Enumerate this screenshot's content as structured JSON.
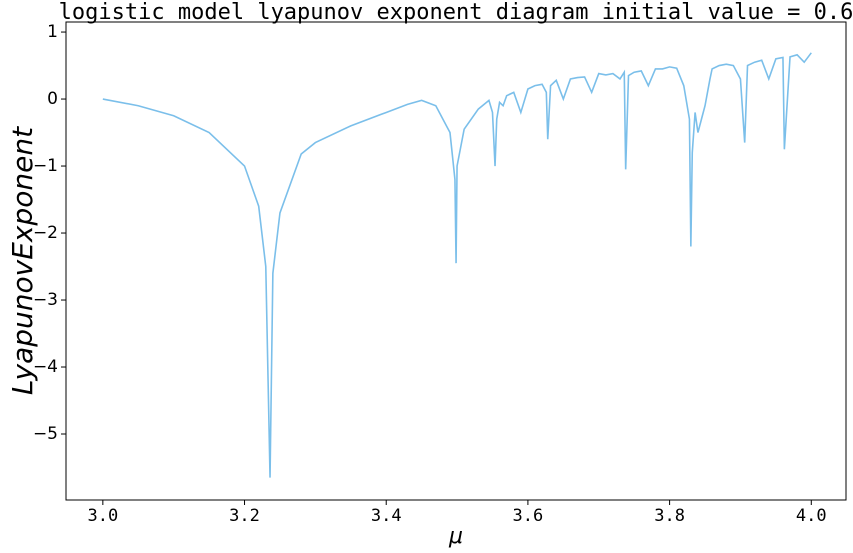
{
  "chart_data": {
    "type": "line",
    "title": "logistic model lyapunov exponent diagram initial value = 0.6",
    "xlabel": "μ",
    "ylabel": "LyapunovExponent",
    "xlim": [
      2.948,
      4.049
    ],
    "ylim": [
      -5.985,
      1.15
    ],
    "xticks": [
      {
        "value": 3,
        "label": "3.0"
      },
      3.2,
      3.4,
      3.6,
      3.8,
      {
        "value": 4,
        "label": "4.0"
      }
    ],
    "yticks": [
      1,
      0,
      {
        "value": -1,
        "label": "−1"
      },
      {
        "value": -2,
        "label": "−2"
      },
      {
        "value": -3,
        "label": "−3"
      },
      {
        "value": -4,
        "label": "−4"
      },
      {
        "value": -5,
        "label": "−5"
      }
    ],
    "grid": false,
    "x": [
      3.0,
      3.05,
      3.1,
      3.15,
      3.2,
      3.22,
      3.23,
      3.236,
      3.24,
      3.25,
      3.28,
      3.3,
      3.35,
      3.4,
      3.43,
      3.45,
      3.47,
      3.49,
      3.497,
      3.4986,
      3.5,
      3.51,
      3.53,
      3.545,
      3.55,
      3.5536,
      3.556,
      3.56,
      3.565,
      3.57,
      3.58,
      3.59,
      3.6,
      3.61,
      3.62,
      3.626,
      3.628,
      3.632,
      3.64,
      3.65,
      3.66,
      3.67,
      3.68,
      3.69,
      3.7,
      3.71,
      3.72,
      3.73,
      3.736,
      3.738,
      3.742,
      3.75,
      3.76,
      3.77,
      3.78,
      3.79,
      3.8,
      3.81,
      3.82,
      3.828,
      3.83,
      3.832,
      3.836,
      3.84,
      3.845,
      3.85,
      3.857,
      3.86,
      3.87,
      3.88,
      3.89,
      3.9,
      3.906,
      3.91,
      3.92,
      3.93,
      3.94,
      3.95,
      3.96,
      3.962,
      3.97,
      3.98,
      3.99,
      4.0
    ],
    "series": [
      {
        "name": "LyapunovExponent",
        "color": "#7bbfea",
        "values": [
          0.0,
          -0.1,
          -0.25,
          -0.5,
          -1.0,
          -1.6,
          -2.5,
          -5.65,
          -2.6,
          -1.7,
          -0.82,
          -0.65,
          -0.4,
          -0.2,
          -0.08,
          -0.02,
          -0.1,
          -0.5,
          -1.2,
          -2.45,
          -1.0,
          -0.45,
          -0.15,
          -0.02,
          -0.2,
          -1.0,
          -0.3,
          -0.05,
          -0.1,
          0.05,
          0.1,
          -0.2,
          0.15,
          0.2,
          0.22,
          0.1,
          -0.6,
          0.2,
          0.28,
          0.0,
          0.3,
          0.32,
          0.33,
          0.1,
          0.38,
          0.36,
          0.38,
          0.3,
          0.4,
          -1.05,
          0.35,
          0.4,
          0.42,
          0.2,
          0.45,
          0.45,
          0.48,
          0.46,
          0.2,
          -0.3,
          -2.2,
          -0.8,
          -0.2,
          -0.5,
          -0.3,
          -0.1,
          0.3,
          0.45,
          0.5,
          0.52,
          0.5,
          0.3,
          -0.65,
          0.5,
          0.55,
          0.58,
          0.3,
          0.6,
          0.62,
          -0.75,
          0.63,
          0.66,
          0.55,
          0.69
        ]
      }
    ]
  }
}
